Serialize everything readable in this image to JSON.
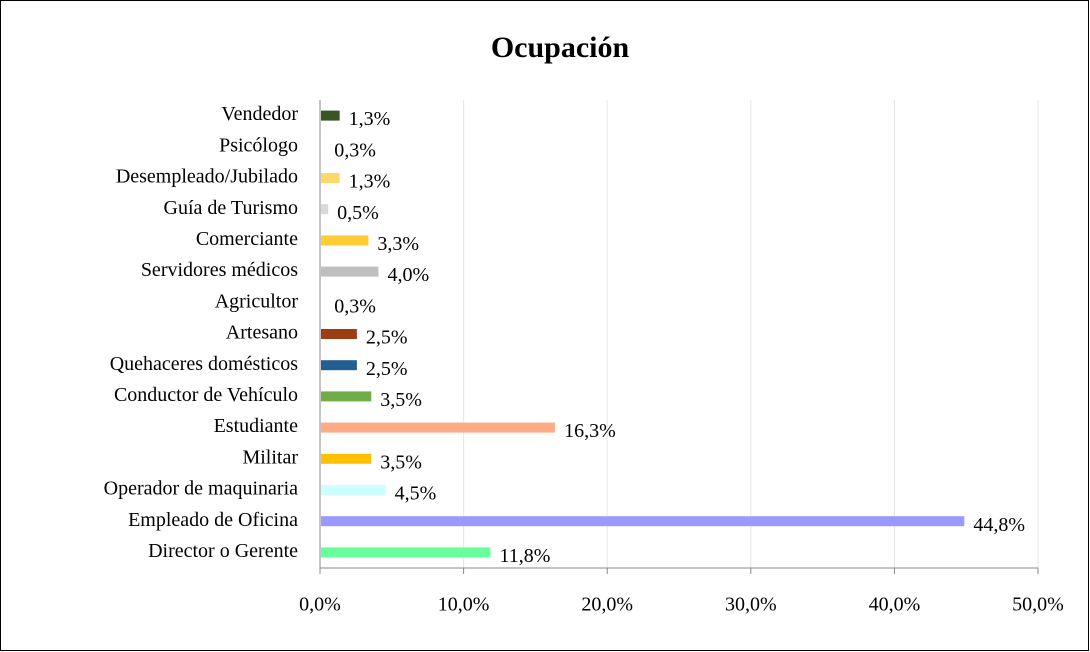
{
  "chart_data": {
    "type": "bar",
    "orientation": "horizontal",
    "title": "Ocupación",
    "categories": [
      "Vendedor",
      "Psicólogo",
      "Desempleado/Jubilado",
      "Guía de Turismo",
      "Comerciante",
      "Servidores médicos",
      "Agricultor",
      "Artesano",
      "Quehaceres domésticos",
      "Conductor de Vehículo",
      "Estudiante",
      "Militar",
      "Operador de maquinaria",
      "Empleado de Oficina",
      "Director o Gerente"
    ],
    "values": [
      1.3,
      0.3,
      1.3,
      0.5,
      3.3,
      4.0,
      0.3,
      2.5,
      2.5,
      3.5,
      16.3,
      3.5,
      4.5,
      44.8,
      11.8
    ],
    "value_labels": [
      "1,3%",
      "0,3%",
      "1,3%",
      "0,5%",
      "3,3%",
      "4,0%",
      "0,3%",
      "2,5%",
      "2,5%",
      "3,5%",
      "16,3%",
      "3,5%",
      "4,5%",
      "44,8%",
      "11,8%"
    ],
    "colors": [
      "#375623",
      "#ffffff",
      "#ffd966",
      "#d9d9d9",
      "#ffcc33",
      "#bfbfbf",
      "#ffffff",
      "#9c3d12",
      "#255e91",
      "#70ad47",
      "#ffab86",
      "#ffc000",
      "#ccffff",
      "#9999ff",
      "#66ff99"
    ],
    "xlim": [
      0,
      50
    ],
    "xticks": [
      {
        "value": 0,
        "label": "0,0%"
      },
      {
        "value": 10,
        "label": "10,0%"
      },
      {
        "value": 20,
        "label": "20,0%"
      },
      {
        "value": 30,
        "label": "30,0%"
      },
      {
        "value": 40,
        "label": "40,0%"
      },
      {
        "value": 50,
        "label": "50,0%"
      }
    ],
    "grid": true
  }
}
